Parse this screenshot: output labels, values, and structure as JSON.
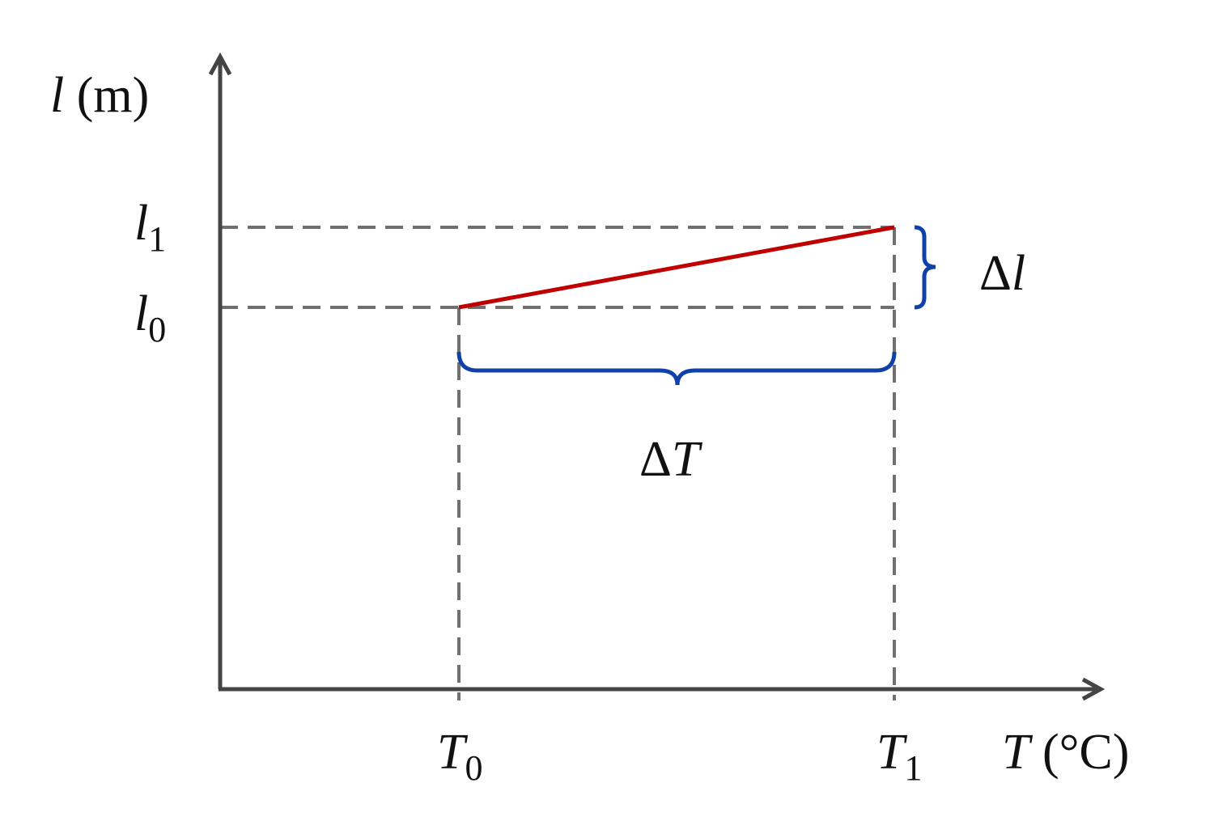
{
  "axes": {
    "y": {
      "symbol": "l",
      "unit": "(m)"
    },
    "x": {
      "symbol": "T",
      "unit": "(°C)"
    }
  },
  "levels": {
    "l1": {
      "symbol": "l",
      "sub": "1"
    },
    "l0": {
      "symbol": "l",
      "sub": "0"
    }
  },
  "temperatures": {
    "T0": {
      "symbol": "T",
      "sub": "0"
    },
    "T1": {
      "symbol": "T",
      "sub": "1"
    }
  },
  "deltas": {
    "length": {
      "delta": "Δ",
      "symbol": "l"
    },
    "temperature": {
      "delta": "Δ",
      "symbol": "T"
    }
  }
}
